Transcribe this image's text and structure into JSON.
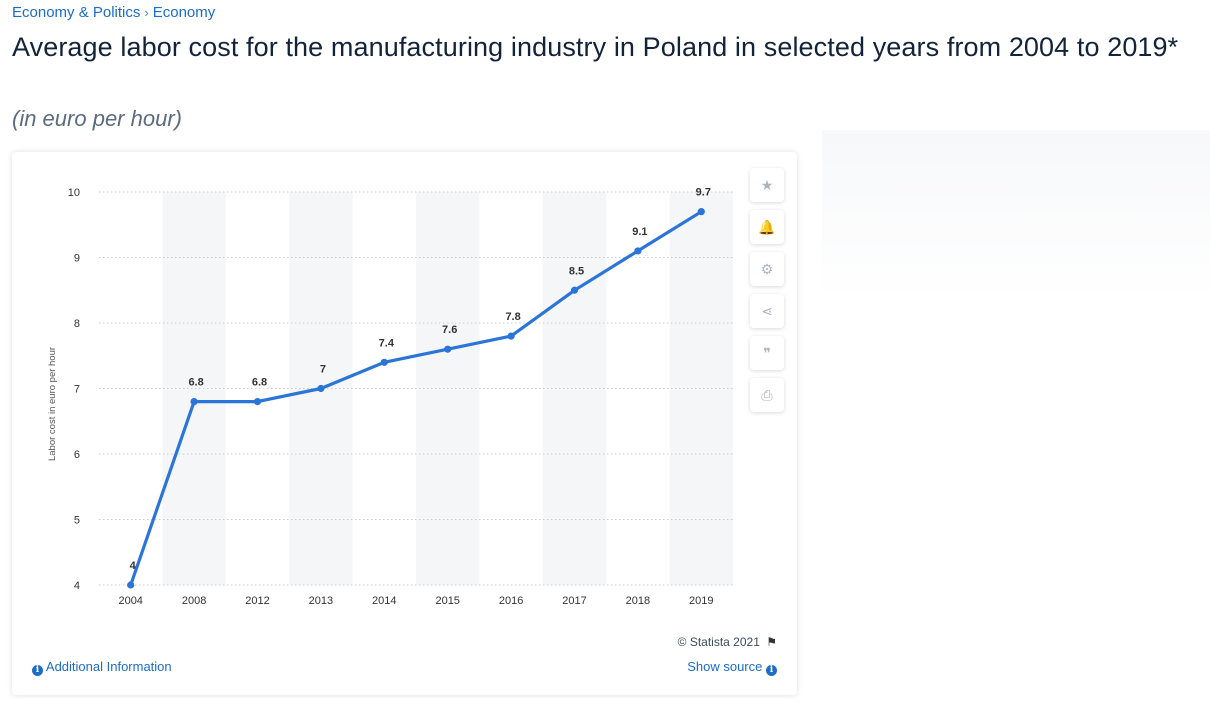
{
  "breadcrumb": {
    "section": "Economy & Politics",
    "separator": "›",
    "subsection": "Economy"
  },
  "title": "Average labor cost for the manufacturing industry in Poland in selected years from 2004 to 2019*",
  "subtitle": "(in euro per hour)",
  "toolbar": [
    {
      "name": "star-icon",
      "glyph": "★"
    },
    {
      "name": "bell-icon",
      "glyph": "🔔"
    },
    {
      "name": "gear-icon",
      "glyph": "⚙"
    },
    {
      "name": "share-icon",
      "glyph": "⋖"
    },
    {
      "name": "quote-icon",
      "glyph": "❞"
    },
    {
      "name": "print-icon",
      "glyph": "⎙"
    }
  ],
  "footer": {
    "copyright": "© Statista 2021",
    "flag_glyph": "⚑",
    "additional_info": "Additional Information",
    "show_source": "Show source",
    "info_glyph": "i"
  },
  "colors": {
    "line": "#2b75d8",
    "accent": "#1c6dc6",
    "band": "#f5f6f8"
  },
  "chart_data": {
    "type": "line",
    "title": "Average labor cost for the manufacturing industry in Poland in selected years from 2004 to 2019*",
    "subtitle": "(in euro per hour)",
    "xlabel": "",
    "ylabel": "Labor cost in euro per hour",
    "categories": [
      "2004",
      "2008",
      "2012",
      "2013",
      "2014",
      "2015",
      "2016",
      "2017",
      "2018",
      "2019"
    ],
    "series": [
      {
        "name": "Labor cost",
        "values": [
          4,
          6.8,
          6.8,
          7,
          7.4,
          7.6,
          7.8,
          8.5,
          9.1,
          9.7
        ],
        "labels": [
          "4",
          "6.8",
          "6.8",
          "7",
          "7.4",
          "7.6",
          "7.8",
          "8.5",
          "9.1",
          "9.7"
        ]
      }
    ],
    "yticks": [
      4,
      5,
      6,
      7,
      8,
      9,
      10
    ],
    "ylim": [
      4,
      10
    ],
    "grid": true,
    "legend": "none"
  }
}
